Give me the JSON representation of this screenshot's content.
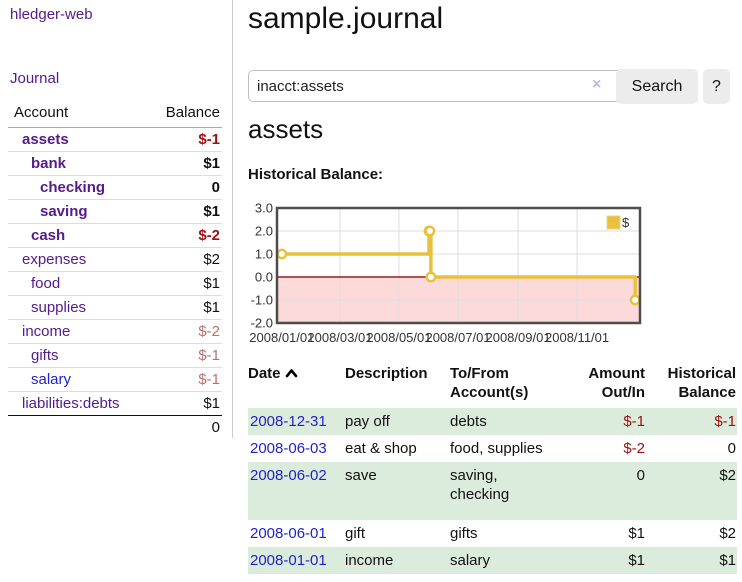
{
  "app": {
    "brand": "hledger-web",
    "nav_journal": "Journal"
  },
  "sidebar": {
    "headers": {
      "account": "Account",
      "balance": "Balance"
    },
    "rows": [
      {
        "account": "assets",
        "balance": "$-1"
      },
      {
        "account": "bank",
        "balance": "$1"
      },
      {
        "account": "checking",
        "balance": "0"
      },
      {
        "account": "saving",
        "balance": "$1"
      },
      {
        "account": "cash",
        "balance": "$-2"
      },
      {
        "account": "expenses",
        "balance": "$2"
      },
      {
        "account": "food",
        "balance": "$1"
      },
      {
        "account": "supplies",
        "balance": "$1"
      },
      {
        "account": "income",
        "balance": "$-2"
      },
      {
        "account": "gifts",
        "balance": "$-1"
      },
      {
        "account": "salary",
        "balance": "$-1"
      },
      {
        "account": "liabilities:debts",
        "balance": "$1"
      }
    ],
    "total": "0"
  },
  "main": {
    "title": "sample.journal",
    "search": {
      "value": "inacct:assets",
      "clear_icon": "×",
      "button_label": "Search",
      "help_label": "?"
    },
    "account_heading": "assets",
    "chart_heading": "Historical Balance:"
  },
  "chart_data": {
    "type": "line",
    "step": true,
    "title": "Historical Balance",
    "series": [
      {
        "name": "$",
        "color": "#e9c13d",
        "points": [
          [
            "2008-01-01",
            1
          ],
          [
            "2008-06-01",
            2
          ],
          [
            "2008-06-02",
            2
          ],
          [
            "2008-06-03",
            0
          ],
          [
            "2008-12-31",
            -1
          ]
        ]
      }
    ],
    "x_domain": [
      "2007-12-27",
      "2009-01-05"
    ],
    "ylim": [
      -2,
      3
    ],
    "y_ticks": [
      "3.0",
      "2.0",
      "1.0",
      "0.0",
      "-1.0",
      "-2.0"
    ],
    "y_tick_values": [
      3,
      2,
      1,
      0,
      -1,
      -2
    ],
    "x_ticks": [
      {
        "date": "2008-01-01",
        "label": "2008/01/01"
      },
      {
        "date": "2008-03-01",
        "label": "2008/03/01"
      },
      {
        "date": "2008-05-01",
        "label": "2008/05/01"
      },
      {
        "date": "2008-07-01",
        "label": "2008/07/01"
      },
      {
        "date": "2008-09-01",
        "label": "2008/09/01"
      },
      {
        "date": "2008-11-01",
        "label": "2008/11/01"
      }
    ],
    "legend": {
      "label": "$",
      "position": "top-right"
    },
    "grid": true,
    "negative_region_color": "#fcdada",
    "zero_line_color": "#951c1c",
    "grid_color": "#dddddd",
    "border_color": "#4d4d4d"
  },
  "register": {
    "headers": {
      "date": "Date",
      "description": "Description",
      "account": "To/From Account(s)",
      "amount": "Amount Out/In",
      "balance": "Historical Balance"
    },
    "rows": [
      {
        "date": "2008-12-31",
        "description": "pay off",
        "account": "debts",
        "amount": "$-1",
        "balance": "$-1"
      },
      {
        "date": "2008-06-03",
        "description": "eat & shop",
        "account": "food, supplies",
        "amount": "$-2",
        "balance": "0"
      },
      {
        "date": "2008-06-02",
        "description": "save",
        "account": "saving, checking",
        "amount": "0",
        "balance": "$2"
      },
      {
        "date": "2008-06-01",
        "description": "gift",
        "account": "gifts",
        "amount": "$1",
        "balance": "$2"
      },
      {
        "date": "2008-01-01",
        "description": "income",
        "account": "salary",
        "amount": "$1",
        "balance": "$1"
      }
    ]
  },
  "colors": {
    "link_purple": "#551a8b",
    "link_blue": "#2222cc",
    "negative_strong": "#9b1111",
    "negative_muted": "#b97070",
    "row_green": "#dcecdc",
    "accent_gold": "#e9c13d"
  }
}
